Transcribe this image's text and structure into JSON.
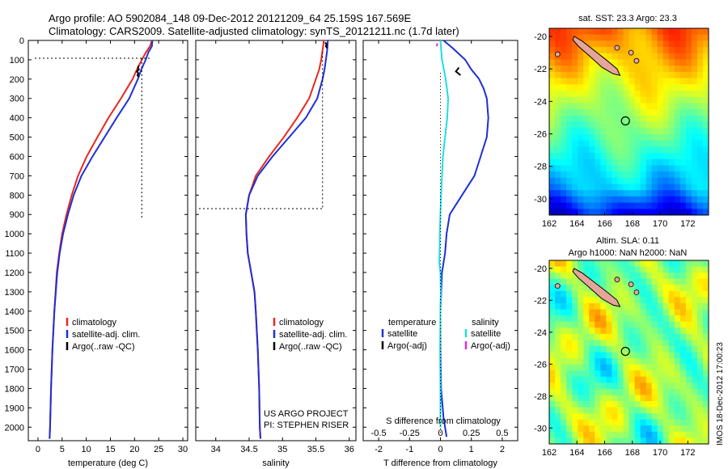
{
  "header": {
    "line1": "Argo profile: AO 5902084_148 09-Dec-2012 20121209_64 25.159S 167.569E",
    "line2": "Climatology: CARS2009. Satellite-adjusted climatology: synTS_20121211.nc (1.7d later)"
  },
  "colors": {
    "climatology": "#e8281e",
    "satellite": "#1e2fd6",
    "argo": "#000000",
    "s_satellite": "#22dde0",
    "s_argo": "#e030d0"
  },
  "credits": {
    "project": "US ARGO PROJECT",
    "pi": "PI: STEPHEN RISER",
    "imos": "IMOS 18-Dec-2012 17:00:23"
  },
  "chart_data": [
    {
      "id": "temperature",
      "type": "line",
      "xlabel": "temperature (deg C)",
      "ylabel": "",
      "xlim": [
        -2,
        31
      ],
      "ylim": [
        2070,
        0
      ],
      "xticks": [
        0,
        5,
        10,
        15,
        20,
        25,
        30
      ],
      "yticks": [
        0,
        100,
        200,
        300,
        400,
        500,
        600,
        700,
        800,
        900,
        1000,
        1100,
        1200,
        1300,
        1400,
        1500,
        1600,
        1700,
        1800,
        1900,
        2000
      ],
      "legend": {
        "position": "lower-center",
        "entries": [
          "climatology",
          "satellite-adj. clim.",
          "Argo(..raw -QC)"
        ]
      },
      "series": [
        {
          "name": "climatology",
          "color": "#e8281e",
          "depth": [
            0,
            30,
            60,
            100,
            150,
            200,
            300,
            400,
            500,
            600,
            700,
            800,
            900,
            1000,
            1100,
            1200,
            1400,
            1600,
            1800,
            2000,
            2060
          ],
          "values": [
            23.6,
            23.2,
            22.4,
            21.5,
            20.5,
            19.6,
            17.2,
            14.6,
            12.3,
            10.1,
            8.3,
            7.0,
            5.9,
            5.0,
            4.4,
            3.9,
            3.4,
            3.0,
            2.7,
            2.5,
            2.4
          ]
        },
        {
          "name": "satellite-adj. clim.",
          "color": "#1e2fd6",
          "depth": [
            0,
            30,
            60,
            100,
            150,
            200,
            300,
            400,
            500,
            600,
            700,
            800,
            900,
            1000,
            1100,
            1200,
            1400,
            1600,
            1800,
            2000,
            2060
          ],
          "values": [
            23.7,
            23.6,
            22.9,
            22.3,
            21.4,
            20.7,
            18.9,
            16.3,
            13.8,
            11.3,
            9.0,
            7.4,
            6.2,
            5.2,
            4.5,
            4.0,
            3.4,
            3.0,
            2.7,
            2.5,
            2.4
          ]
        },
        {
          "name": "Argo(..raw -QC)",
          "color": "#000000",
          "depth": [
            130,
            140,
            150,
            160,
            170,
            180,
            190
          ],
          "values": [
            20.9,
            20.7,
            20.9,
            20.5,
            20.8,
            20.6,
            20.9
          ]
        }
      ],
      "reference_lines": {
        "dotted_depth": 50,
        "dotted_x": 21.5,
        "dotted_bottom": 920
      }
    },
    {
      "id": "salinity",
      "type": "line",
      "xlabel": "salinity",
      "ylabel": "",
      "xlim": [
        33.7,
        36.1
      ],
      "ylim": [
        2070,
        0
      ],
      "xticks": [
        34,
        34.5,
        35,
        35.5,
        36
      ],
      "legend": {
        "position": "lower-right",
        "entries": [
          "climatology",
          "satellite-adj. clim.",
          "Argo(..raw -QC)"
        ]
      },
      "series": [
        {
          "name": "climatology",
          "color": "#e8281e",
          "depth": [
            0,
            50,
            100,
            150,
            200,
            300,
            400,
            500,
            600,
            700,
            800,
            900,
            1000,
            1100,
            1200,
            1300,
            1400,
            1600,
            1800,
            2000,
            2060
          ],
          "values": [
            35.62,
            35.6,
            35.58,
            35.55,
            35.5,
            35.4,
            35.22,
            35.02,
            34.8,
            34.6,
            34.5,
            34.45,
            34.46,
            34.48,
            34.53,
            34.58,
            34.6,
            34.63,
            34.65,
            34.66,
            34.67
          ]
        },
        {
          "name": "satellite-adj. clim.",
          "color": "#1e2fd6",
          "depth": [
            0,
            50,
            100,
            150,
            200,
            300,
            400,
            500,
            600,
            700,
            800,
            900,
            1000,
            1100,
            1200,
            1300,
            1400,
            1600,
            1800,
            2000,
            2060
          ],
          "values": [
            35.68,
            35.67,
            35.65,
            35.63,
            35.6,
            35.52,
            35.35,
            35.1,
            34.85,
            34.63,
            34.5,
            34.45,
            34.46,
            34.48,
            34.53,
            34.58,
            34.6,
            34.63,
            34.65,
            34.66,
            34.67
          ]
        },
        {
          "name": "Argo(..raw -QC)",
          "color": "#000000",
          "depth": [
            10,
            20,
            30,
            40
          ],
          "values": [
            35.64,
            35.66,
            35.65,
            35.67
          ]
        }
      ],
      "reference_lines": {
        "dotted_x": 35.6,
        "dotted_bottom": 915
      }
    },
    {
      "id": "difference",
      "type": "line",
      "xlabel": "T difference from climatology",
      "xlabel_top": "S difference from climatology",
      "xlim": [
        -2.5,
        2.5
      ],
      "ylim": [
        2070,
        0
      ],
      "xticks": [
        -2,
        -1,
        0,
        1,
        2
      ],
      "s_ticks": [
        -0.5,
        -0.25,
        0,
        0.25,
        0.5
      ],
      "legend_groups": {
        "temperature": "temperature",
        "salinity": "salinity"
      },
      "legend": {
        "position": "lower-center",
        "entries": [
          "satellite",
          "Argo(-adj)",
          "satellite",
          "Argo(-adj)"
        ]
      },
      "series": [
        {
          "name": "satellite",
          "group": "temperature",
          "color": "#1e2fd6",
          "depth": [
            0,
            40,
            100,
            150,
            200,
            250,
            300,
            400,
            500,
            600,
            700,
            800,
            900,
            1000,
            1100,
            1200,
            1400,
            1600,
            1800,
            1950,
            2050
          ],
          "values": [
            0.1,
            0.4,
            0.8,
            1.0,
            1.25,
            1.4,
            1.5,
            1.55,
            1.5,
            1.3,
            1.1,
            0.7,
            0.3,
            0.2,
            0.15,
            0.05,
            0.0,
            0.0,
            0.02,
            0.1,
            0.2
          ]
        },
        {
          "name": "Argo(-adj)",
          "group": "temperature",
          "color": "#000000",
          "depth": [
            140,
            160,
            180
          ],
          "values": [
            0.6,
            0.5,
            0.65
          ]
        },
        {
          "name": "satellite",
          "group": "salinity",
          "color": "#22dde0",
          "depth": [
            0,
            100,
            200,
            300,
            400,
            500,
            600,
            700,
            800,
            900,
            1000,
            1100,
            1150,
            1200,
            1300,
            1400,
            1600,
            1800,
            2000
          ],
          "values": [
            0.0,
            0.05,
            0.17,
            0.25,
            0.22,
            0.15,
            0.08,
            0.05,
            0.02,
            0.0,
            -0.02,
            -0.03,
            -0.04,
            0.0,
            0.01,
            0.0,
            -0.01,
            0.0,
            0.0
          ]
        },
        {
          "name": "Argo(-adj)",
          "group": "salinity",
          "color": "#e030d0",
          "depth": [
            15,
            30
          ],
          "values": [
            -0.1,
            -0.12
          ]
        }
      ]
    },
    {
      "id": "sst-map",
      "type": "heatmap",
      "title": "sat. SST: 23.3 Argo: 23.3",
      "xlim": [
        162,
        173.5
      ],
      "ylim": [
        -31,
        -19.5
      ],
      "xticks": [
        162,
        164,
        166,
        168,
        170,
        172
      ],
      "yticks": [
        -20,
        -22,
        -24,
        -26,
        -28,
        -30
      ],
      "marker": {
        "lon": 167.5,
        "lat": -25.2
      }
    },
    {
      "id": "sla-map",
      "type": "heatmap",
      "title": "Altim. SLA: 0.11",
      "subtitle": "Argo h1000: NaN h2000: NaN",
      "xlim": [
        162,
        173.5
      ],
      "ylim": [
        -31,
        -19.5
      ],
      "xticks": [
        162,
        164,
        166,
        168,
        170,
        172
      ],
      "yticks": [
        -20,
        -22,
        -24,
        -26,
        -28,
        -30
      ],
      "marker": {
        "lon": 167.5,
        "lat": -25.2
      }
    }
  ]
}
